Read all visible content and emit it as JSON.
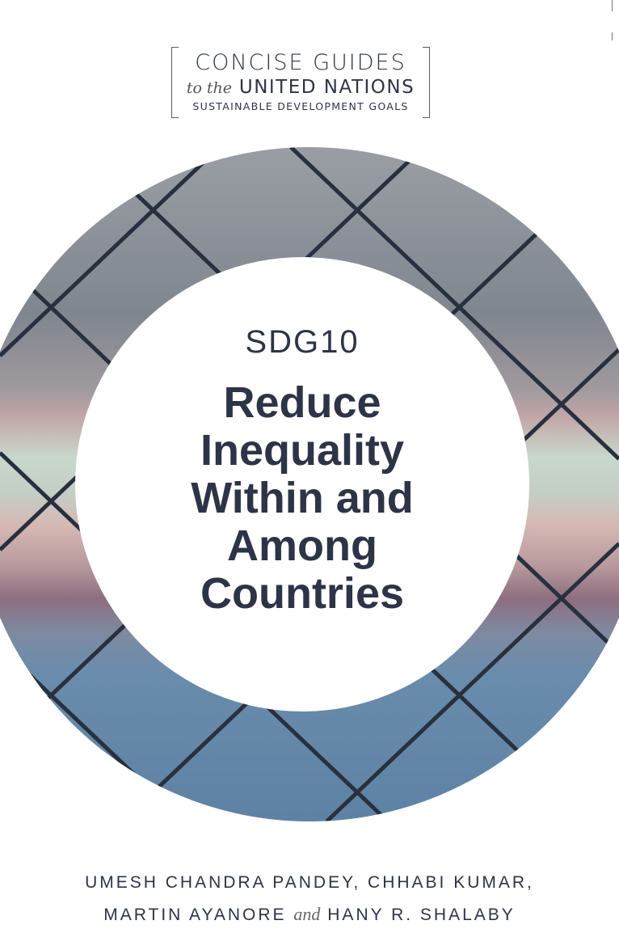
{
  "series": {
    "line1": "CONCISE GUIDES",
    "line2_prefix": "to the",
    "line2": "UNITED NATIONS",
    "line3": "SUSTAINABLE DEVELOPMENT GOALS"
  },
  "cover": {
    "goal": "SDG10",
    "title_lines": [
      "Reduce",
      "Inequality",
      "Within and",
      "Among",
      "Countries"
    ]
  },
  "authors": {
    "line1": "UMESH CHANDRA PANDEY, CHHABI KUMAR,",
    "line2_a": "MARTIN AYANORE",
    "conjunction": "and",
    "line2_b": "HANY R. SHALABY"
  },
  "colors": {
    "text": "#2e3447",
    "fence": "#28303e",
    "photo_sky": "#8c9098",
    "photo_court": "#6488a8"
  }
}
